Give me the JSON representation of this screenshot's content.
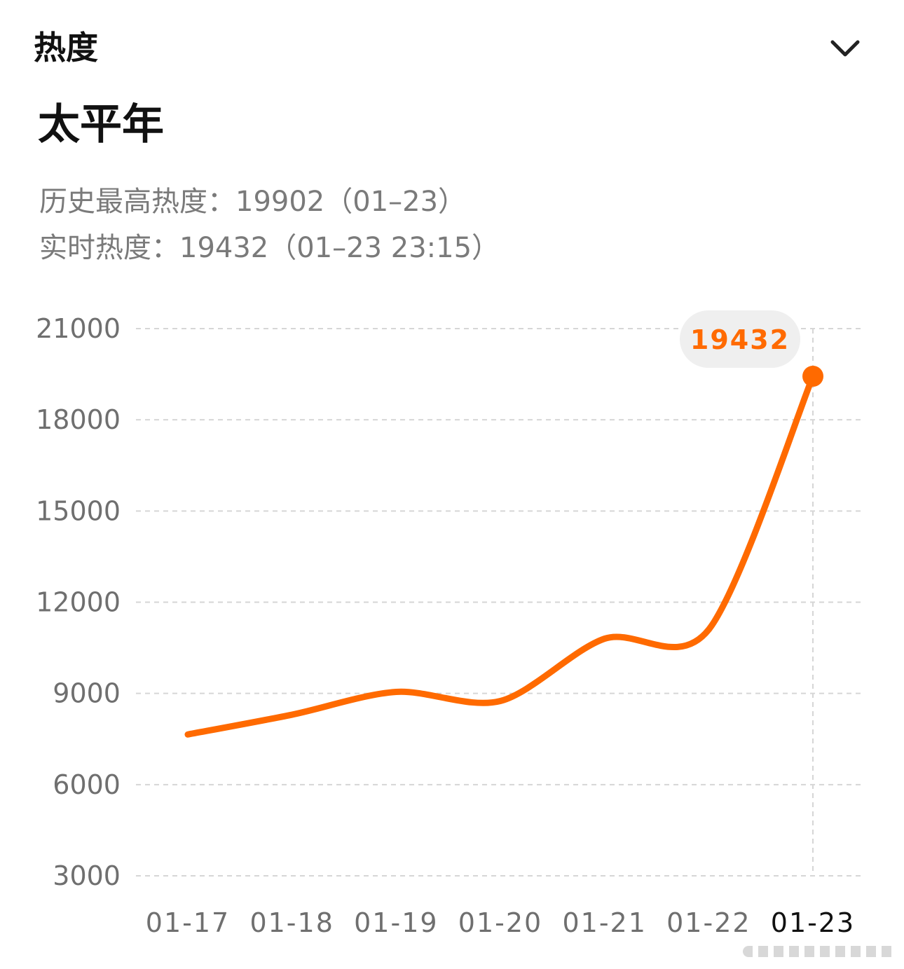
{
  "header": {
    "section_title": "热度",
    "collapse_icon": "chevron-down-icon"
  },
  "topic": {
    "title": "太平年"
  },
  "stats": {
    "peak_text": "历史最高热度：19902（01–23）",
    "live_text": "实时热度：19432（01–23 23:15）"
  },
  "colors": {
    "line": "#ff6a00",
    "grid": "#d6d6d6",
    "tooltip_bg": "#efefef"
  },
  "chart_data": {
    "type": "line",
    "title": "",
    "xlabel": "",
    "ylabel": "",
    "ylim": [
      3000,
      21000
    ],
    "yticks": [
      21000,
      18000,
      15000,
      12000,
      9000,
      6000,
      3000
    ],
    "categories": [
      "01-17",
      "01-18",
      "01-19",
      "01-20",
      "01-21",
      "01-22",
      "01-23"
    ],
    "active_category": "01-23",
    "series": [
      {
        "values": [
          7650,
          8300,
          9050,
          8750,
          10800,
          11100,
          19432
        ]
      }
    ],
    "grid": true,
    "highlight": {
      "x": "01-23",
      "value": 19432,
      "label": "19432"
    }
  }
}
